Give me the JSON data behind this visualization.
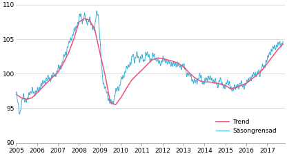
{
  "xlim": [
    2005.0,
    2017.83
  ],
  "ylim": [
    90,
    110
  ],
  "yticks": [
    90,
    95,
    100,
    105,
    110
  ],
  "xticks": [
    2005,
    2006,
    2007,
    2008,
    2009,
    2010,
    2011,
    2012,
    2013,
    2014,
    2015,
    2016,
    2017
  ],
  "trend_color": "#f05078",
  "seas_color": "#3ab0d8",
  "legend_labels": [
    "Trend",
    "Säsongrensad"
  ],
  "background_color": "#ffffff",
  "grid_color": "#cccccc",
  "trend_points": [
    [
      2005.0,
      97.0
    ],
    [
      2005.25,
      96.5
    ],
    [
      2005.5,
      96.3
    ],
    [
      2005.75,
      96.5
    ],
    [
      2006.0,
      97.2
    ],
    [
      2006.25,
      98.0
    ],
    [
      2006.5,
      98.8
    ],
    [
      2006.75,
      99.5
    ],
    [
      2007.0,
      100.2
    ],
    [
      2007.25,
      101.5
    ],
    [
      2007.5,
      103.0
    ],
    [
      2007.75,
      105.0
    ],
    [
      2008.0,
      107.5
    ],
    [
      2008.25,
      108.0
    ],
    [
      2008.5,
      107.8
    ],
    [
      2008.75,
      106.5
    ],
    [
      2009.0,
      103.0
    ],
    [
      2009.25,
      99.8
    ],
    [
      2009.5,
      95.8
    ],
    [
      2009.75,
      95.5
    ],
    [
      2010.0,
      96.5
    ],
    [
      2010.25,
      97.8
    ],
    [
      2010.5,
      99.0
    ],
    [
      2010.75,
      99.8
    ],
    [
      2011.0,
      100.5
    ],
    [
      2011.25,
      101.3
    ],
    [
      2011.5,
      102.0
    ],
    [
      2011.75,
      102.3
    ],
    [
      2012.0,
      102.2
    ],
    [
      2012.25,
      102.0
    ],
    [
      2012.5,
      101.8
    ],
    [
      2012.75,
      101.5
    ],
    [
      2013.0,
      101.0
    ],
    [
      2013.25,
      100.2
    ],
    [
      2013.5,
      99.5
    ],
    [
      2013.75,
      99.0
    ],
    [
      2014.0,
      98.8
    ],
    [
      2014.25,
      98.8
    ],
    [
      2014.5,
      98.7
    ],
    [
      2014.75,
      98.5
    ],
    [
      2015.0,
      98.3
    ],
    [
      2015.25,
      97.8
    ],
    [
      2015.5,
      98.0
    ],
    [
      2015.75,
      98.3
    ],
    [
      2016.0,
      98.6
    ],
    [
      2016.25,
      99.2
    ],
    [
      2016.5,
      99.8
    ],
    [
      2016.75,
      100.5
    ],
    [
      2017.0,
      101.5
    ],
    [
      2017.25,
      102.5
    ],
    [
      2017.5,
      103.5
    ],
    [
      2017.75,
      104.3
    ]
  ],
  "sa_base_points": [
    [
      2005.0,
      97.0
    ],
    [
      2005.08,
      96.0
    ],
    [
      2005.17,
      94.2
    ],
    [
      2005.25,
      95.5
    ],
    [
      2005.33,
      96.8
    ],
    [
      2005.5,
      96.0
    ],
    [
      2005.67,
      97.5
    ],
    [
      2005.83,
      97.2
    ],
    [
      2006.0,
      97.5
    ],
    [
      2006.25,
      98.5
    ],
    [
      2006.5,
      99.2
    ],
    [
      2006.75,
      99.5
    ],
    [
      2007.0,
      100.5
    ],
    [
      2007.17,
      101.5
    ],
    [
      2007.33,
      103.0
    ],
    [
      2007.5,
      104.0
    ],
    [
      2007.67,
      105.5
    ],
    [
      2007.83,
      106.5
    ],
    [
      2008.0,
      107.8
    ],
    [
      2008.08,
      108.8
    ],
    [
      2008.17,
      107.5
    ],
    [
      2008.25,
      108.5
    ],
    [
      2008.33,
      107.8
    ],
    [
      2008.42,
      107.5
    ],
    [
      2008.5,
      107.8
    ],
    [
      2008.58,
      107.2
    ],
    [
      2008.67,
      106.8
    ],
    [
      2008.75,
      106.0
    ],
    [
      2008.83,
      109.0
    ],
    [
      2008.92,
      108.8
    ],
    [
      2009.0,
      105.0
    ],
    [
      2009.08,
      101.0
    ],
    [
      2009.17,
      98.5
    ],
    [
      2009.25,
      97.8
    ],
    [
      2009.33,
      97.2
    ],
    [
      2009.42,
      96.5
    ],
    [
      2009.5,
      96.0
    ],
    [
      2009.58,
      95.8
    ],
    [
      2009.67,
      96.2
    ],
    [
      2009.75,
      97.2
    ],
    [
      2009.83,
      97.8
    ],
    [
      2009.92,
      98.2
    ],
    [
      2010.0,
      98.8
    ],
    [
      2010.08,
      99.5
    ],
    [
      2010.17,
      100.0
    ],
    [
      2010.25,
      100.5
    ],
    [
      2010.33,
      101.2
    ],
    [
      2010.42,
      101.5
    ],
    [
      2010.5,
      101.8
    ],
    [
      2010.58,
      102.5
    ],
    [
      2010.67,
      102.2
    ],
    [
      2010.75,
      102.8
    ],
    [
      2010.83,
      102.5
    ],
    [
      2010.92,
      102.2
    ],
    [
      2011.0,
      102.5
    ],
    [
      2011.08,
      101.8
    ],
    [
      2011.17,
      103.0
    ],
    [
      2011.25,
      102.8
    ],
    [
      2011.33,
      102.5
    ],
    [
      2011.42,
      102.0
    ],
    [
      2011.5,
      102.3
    ],
    [
      2011.58,
      102.8
    ],
    [
      2011.67,
      102.5
    ],
    [
      2011.75,
      102.0
    ],
    [
      2011.83,
      101.8
    ],
    [
      2011.92,
      101.5
    ],
    [
      2012.0,
      102.0
    ],
    [
      2012.08,
      101.8
    ],
    [
      2012.17,
      102.2
    ],
    [
      2012.25,
      101.5
    ],
    [
      2012.33,
      101.8
    ],
    [
      2012.5,
      101.2
    ],
    [
      2012.67,
      101.5
    ],
    [
      2012.83,
      101.0
    ],
    [
      2013.0,
      101.2
    ],
    [
      2013.17,
      100.2
    ],
    [
      2013.33,
      99.8
    ],
    [
      2013.42,
      99.0
    ],
    [
      2013.5,
      98.8
    ],
    [
      2013.67,
      99.2
    ],
    [
      2013.75,
      99.5
    ],
    [
      2013.83,
      99.8
    ],
    [
      2013.92,
      98.8
    ],
    [
      2014.0,
      98.5
    ],
    [
      2014.17,
      99.5
    ],
    [
      2014.25,
      99.2
    ],
    [
      2014.33,
      99.0
    ],
    [
      2014.5,
      98.8
    ],
    [
      2014.67,
      98.5
    ],
    [
      2014.75,
      99.0
    ],
    [
      2014.83,
      98.5
    ],
    [
      2014.92,
      98.2
    ],
    [
      2015.0,
      98.0
    ],
    [
      2015.08,
      98.8
    ],
    [
      2015.17,
      99.0
    ],
    [
      2015.25,
      97.8
    ],
    [
      2015.33,
      97.5
    ],
    [
      2015.42,
      98.2
    ],
    [
      2015.5,
      97.8
    ],
    [
      2015.58,
      98.2
    ],
    [
      2015.67,
      98.5
    ],
    [
      2015.75,
      98.8
    ],
    [
      2015.83,
      98.2
    ],
    [
      2015.92,
      98.5
    ],
    [
      2016.0,
      98.5
    ],
    [
      2016.08,
      99.2
    ],
    [
      2016.17,
      99.5
    ],
    [
      2016.25,
      99.0
    ],
    [
      2016.33,
      99.8
    ],
    [
      2016.42,
      100.0
    ],
    [
      2016.5,
      99.8
    ],
    [
      2016.58,
      100.5
    ],
    [
      2016.67,
      100.2
    ],
    [
      2016.75,
      100.8
    ],
    [
      2016.83,
      101.2
    ],
    [
      2016.92,
      101.5
    ],
    [
      2017.0,
      102.0
    ],
    [
      2017.08,
      102.8
    ],
    [
      2017.17,
      103.2
    ],
    [
      2017.25,
      103.5
    ],
    [
      2017.33,
      104.0
    ],
    [
      2017.42,
      103.8
    ],
    [
      2017.5,
      104.2
    ],
    [
      2017.58,
      104.5
    ],
    [
      2017.67,
      104.2
    ],
    [
      2017.75,
      104.5
    ]
  ]
}
